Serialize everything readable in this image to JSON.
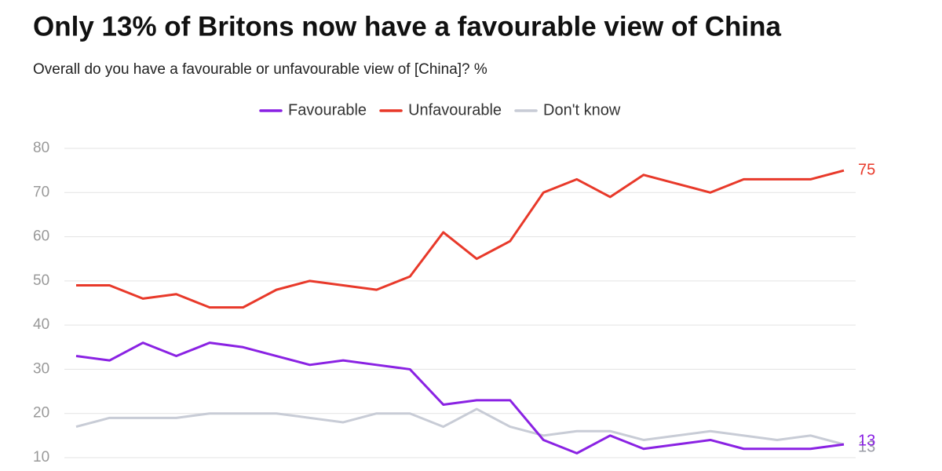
{
  "chart_data": {
    "type": "line",
    "title": "Only 13% of Britons now have a favourable view of China",
    "subtitle": "Overall do you have a favourable or unfavourable view of [China]? %",
    "categories": [
      null,
      null,
      null,
      null,
      null,
      null,
      null,
      null,
      null,
      null,
      null,
      null,
      null,
      null,
      null,
      null,
      null,
      null,
      null,
      null,
      null,
      null,
      null,
      null
    ],
    "series": [
      {
        "name": "Favourable",
        "color": "#8a22e3",
        "values": [
          33,
          32,
          36,
          33,
          36,
          35,
          33,
          31,
          32,
          31,
          30,
          22,
          23,
          23,
          14,
          11,
          15,
          12,
          13,
          14,
          12,
          12,
          12,
          13
        ]
      },
      {
        "name": "Unfavourable",
        "color": "#e8392a",
        "values": [
          49,
          49,
          46,
          47,
          44,
          44,
          48,
          50,
          49,
          48,
          51,
          61,
          55,
          59,
          70,
          73,
          69,
          74,
          72,
          70,
          73,
          73,
          73,
          75
        ]
      },
      {
        "name": "Don't know",
        "color": "#c8ccd6",
        "values": [
          17,
          19,
          19,
          19,
          20,
          20,
          20,
          19,
          18,
          20,
          20,
          17,
          21,
          17,
          15,
          16,
          16,
          14,
          15,
          16,
          15,
          14,
          15,
          13
        ]
      }
    ],
    "ylim": [
      10,
      80
    ],
    "yticks": [
      10,
      20,
      30,
      40,
      50,
      60,
      70,
      80
    ],
    "grid": true,
    "legend": "top"
  }
}
